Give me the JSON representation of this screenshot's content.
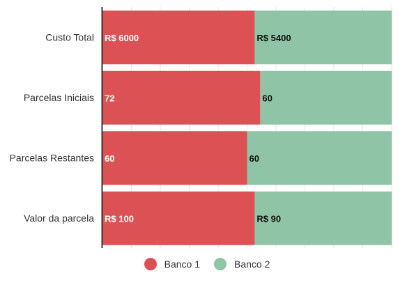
{
  "chart_data": {
    "type": "bar",
    "orientation": "horizontal",
    "stacked": "percent",
    "categories": [
      "Custo Total",
      "Parcelas Iniciais",
      "Parcelas Restantes",
      "Valor da parcela"
    ],
    "series": [
      {
        "name": "Banco 1",
        "values": [
          6000,
          72,
          60,
          100
        ],
        "labels": [
          "R$ 6000",
          "72",
          "60",
          "R$ 100"
        ],
        "color": "#dc5254",
        "label_color": "#ffffff"
      },
      {
        "name": "Banco 2",
        "values": [
          5400,
          60,
          60,
          90
        ],
        "labels": [
          "R$ 5400",
          "60",
          "60",
          "R$ 90"
        ],
        "color": "#90c4a6",
        "label_color": "#111111"
      }
    ],
    "title": "",
    "xlabel": "",
    "ylabel": "",
    "xlim": [
      0,
      100
    ],
    "grid": true,
    "legend_position": "bottom"
  }
}
